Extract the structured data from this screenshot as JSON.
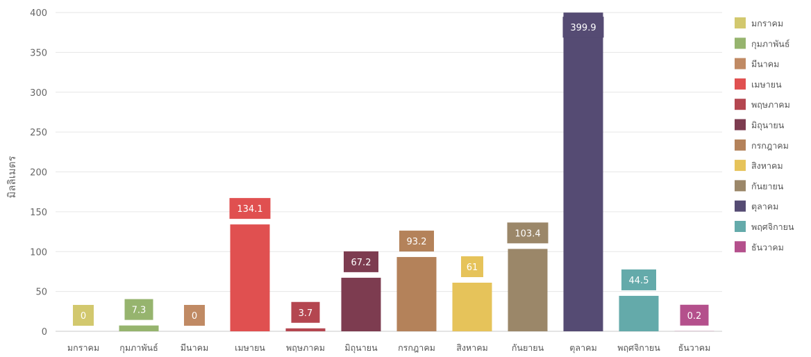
{
  "chart_data": {
    "type": "bar",
    "ylabel": "มิลลิเมตร",
    "xlabel": "",
    "ylim": [
      0,
      400
    ],
    "yticks": [
      0,
      50,
      100,
      150,
      200,
      250,
      300,
      350,
      400
    ],
    "grid": true,
    "legend_position": "right",
    "categories": [
      "มกราคม",
      "กุมภาพันธ์",
      "มีนาคม",
      "เมษายน",
      "พฤษภาคม",
      "มิถุนายน",
      "กรกฎาคม",
      "สิงหาคม",
      "กันยายน",
      "ตุลาคม",
      "พฤศจิกายน",
      "ธันวาคม"
    ],
    "values": [
      0,
      7.3,
      0,
      134.1,
      3.7,
      67.2,
      93.2,
      61,
      103.4,
      399.9,
      44.5,
      0.2
    ],
    "labels": [
      "0",
      "7.3",
      "0",
      "134.1",
      "3.7",
      "67.2",
      "93.2",
      "61",
      "103.4",
      "399.9",
      "44.5",
      "0.2"
    ],
    "colors": [
      "#d2c86e",
      "#96b46e",
      "#c08a64",
      "#e05050",
      "#b44650",
      "#7d3c50",
      "#b4825a",
      "#e6c35a",
      "#9b8769",
      "#554b73",
      "#64aaaa",
      "#b4508c"
    ]
  }
}
